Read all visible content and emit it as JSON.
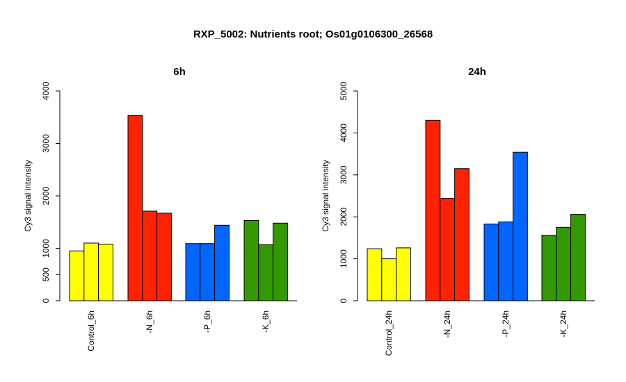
{
  "title": "RXP_5002: Nutrients root; Os01g0106300_26568",
  "chart_data": [
    {
      "type": "bar",
      "title": "6h",
      "ylabel": "Cy3 signal intensity",
      "ylim": [
        0,
        4000
      ],
      "yticks": [
        0,
        500,
        1000,
        2000,
        3000,
        4000
      ],
      "groups": [
        {
          "label": "Control_6h",
          "color": "#ffff00",
          "values": [
            950,
            1100,
            1080
          ]
        },
        {
          "label": "-N_6h",
          "color": "#ff2200",
          "values": [
            3530,
            1710,
            1670
          ]
        },
        {
          "label": "-P_6h",
          "color": "#0066ff",
          "values": [
            1090,
            1090,
            1440
          ]
        },
        {
          "label": "-K_6h",
          "color": "#339900",
          "values": [
            1530,
            1070,
            1480
          ]
        }
      ]
    },
    {
      "type": "bar",
      "title": "24h",
      "ylabel": "Cy3 signal intensity",
      "ylim": [
        0,
        5000
      ],
      "yticks": [
        0,
        1000,
        2000,
        3000,
        4000,
        5000
      ],
      "groups": [
        {
          "label": "Control_24h",
          "color": "#ffff00",
          "values": [
            1240,
            1000,
            1260
          ]
        },
        {
          "label": "-N_24h",
          "color": "#ff2200",
          "values": [
            4300,
            2440,
            3150
          ]
        },
        {
          "label": "-P_24h",
          "color": "#0066ff",
          "values": [
            1830,
            1880,
            3540
          ]
        },
        {
          "label": "-K_24h",
          "color": "#339900",
          "values": [
            1560,
            1750,
            2060
          ]
        }
      ]
    }
  ]
}
